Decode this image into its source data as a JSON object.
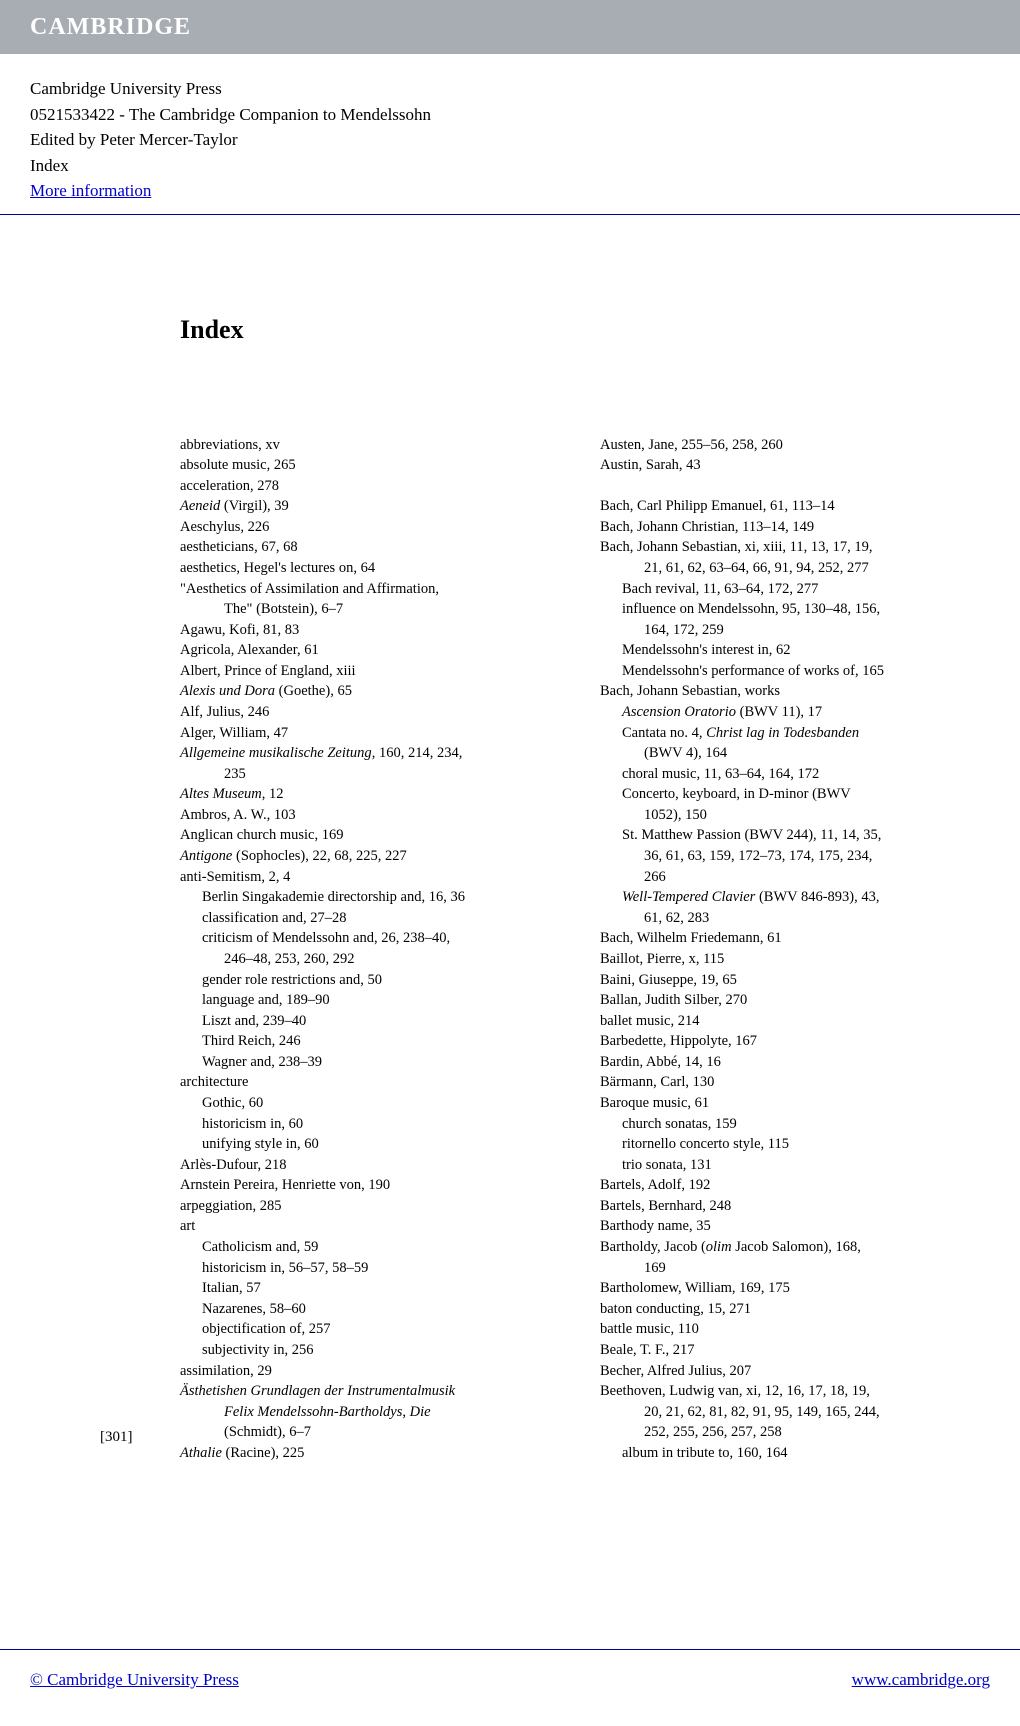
{
  "banner": {
    "logo": "CAMBRIDGE"
  },
  "header": {
    "publisher": "Cambridge University Press",
    "isbn_title": "0521533422 - The Cambridge Companion to Mendelssohn",
    "editor": "Edited by Peter Mercer-Taylor",
    "section": "Index",
    "more_info": "More information"
  },
  "title": "Index",
  "page_number": "[301]",
  "footer": {
    "left": "© Cambridge University Press",
    "right": "www.cambridge.org"
  },
  "col1": [
    {
      "t": "abbreviations, xv",
      "c": "entry"
    },
    {
      "t": "absolute music, 265",
      "c": "entry"
    },
    {
      "t": "acceleration, 278",
      "c": "entry"
    },
    {
      "html": "<span class='italic'>Aeneid</span> (Virgil), 39",
      "c": "entry"
    },
    {
      "t": "Aeschylus, 226",
      "c": "entry"
    },
    {
      "t": "aestheticians, 67, 68",
      "c": "entry"
    },
    {
      "t": "aesthetics, Hegel's lectures on, 64",
      "c": "entry"
    },
    {
      "t": "\"Aesthetics of Assimilation and Affirmation,",
      "c": "entry"
    },
    {
      "t": "The\" (Botstein), 6–7",
      "c": "sub2"
    },
    {
      "t": "Agawu, Kofi, 81, 83",
      "c": "entry"
    },
    {
      "t": "Agricola, Alexander, 61",
      "c": "entry"
    },
    {
      "t": "Albert, Prince of England, xiii",
      "c": "entry"
    },
    {
      "html": "<span class='italic'>Alexis und Dora</span> (Goethe), 65",
      "c": "entry"
    },
    {
      "t": "Alf, Julius, 246",
      "c": "entry"
    },
    {
      "t": "Alger, William, 47",
      "c": "entry"
    },
    {
      "html": "<span class='italic'>Allgemeine musikalische Zeitung</span>, 160, 214, 234,",
      "c": "entry"
    },
    {
      "t": "235",
      "c": "sub2"
    },
    {
      "html": "<span class='italic'>Altes Museum</span>, 12",
      "c": "entry"
    },
    {
      "t": "Ambros, A. W., 103",
      "c": "entry"
    },
    {
      "t": "Anglican church music, 169",
      "c": "entry"
    },
    {
      "html": "<span class='italic'>Antigone</span> (Sophocles), 22, 68, 225, 227",
      "c": "entry"
    },
    {
      "t": "anti-Semitism, 2, 4",
      "c": "entry"
    },
    {
      "t": "Berlin Singakademie directorship and, 16, 36",
      "c": "sub1"
    },
    {
      "t": "classification and, 27–28",
      "c": "sub1"
    },
    {
      "t": "criticism of Mendelssohn and, 26, 238–40,",
      "c": "sub1"
    },
    {
      "t": "246–48, 253, 260, 292",
      "c": "sub2"
    },
    {
      "t": "gender role restrictions and, 50",
      "c": "sub1"
    },
    {
      "t": "language and, 189–90",
      "c": "sub1"
    },
    {
      "t": "Liszt and, 239–40",
      "c": "sub1"
    },
    {
      "t": "Third Reich, 246",
      "c": "sub1"
    },
    {
      "t": "Wagner and, 238–39",
      "c": "sub1"
    },
    {
      "t": "architecture",
      "c": "entry"
    },
    {
      "t": "Gothic, 60",
      "c": "sub1"
    },
    {
      "t": "historicism in, 60",
      "c": "sub1"
    },
    {
      "t": "unifying style in, 60",
      "c": "sub1"
    },
    {
      "t": "Arlès-Dufour, 218",
      "c": "entry"
    },
    {
      "t": "Arnstein Pereira, Henriette von, 190",
      "c": "entry"
    },
    {
      "t": "arpeggiation, 285",
      "c": "entry"
    },
    {
      "t": "art",
      "c": "entry"
    },
    {
      "t": "Catholicism and, 59",
      "c": "sub1"
    },
    {
      "t": "historicism in, 56–57, 58–59",
      "c": "sub1"
    },
    {
      "t": "Italian, 57",
      "c": "sub1"
    },
    {
      "t": "Nazarenes, 58–60",
      "c": "sub1"
    },
    {
      "t": "objectification of, 257",
      "c": "sub1"
    },
    {
      "t": "subjectivity in, 256",
      "c": "sub1"
    },
    {
      "t": "assimilation, 29",
      "c": "entry"
    },
    {
      "html": "<span class='italic'>Ästhetishen Grundlagen der Instrumentalmusik</span>",
      "c": "entry"
    },
    {
      "html": "<span class='italic'>Felix Mendelssohn-Bartholdys</span>, <span class='italic'>Die</span>",
      "c": "sub2"
    },
    {
      "t": "(Schmidt), 6–7",
      "c": "sub2"
    },
    {
      "html": "<span class='italic'>Athalie</span> (Racine), 225",
      "c": "entry"
    }
  ],
  "col2": [
    {
      "t": "Austen, Jane, 255–56, 258, 260",
      "c": "entry"
    },
    {
      "t": "Austin, Sarah, 43",
      "c": "entry"
    },
    {
      "t": "",
      "c": "entry"
    },
    {
      "t": "Bach, Carl Philipp Emanuel, 61, 113–14",
      "c": "entry"
    },
    {
      "t": "Bach, Johann Christian, 113–14, 149",
      "c": "entry"
    },
    {
      "t": "Bach, Johann Sebastian, xi, xiii, 11, 13, 17, 19,",
      "c": "entry"
    },
    {
      "t": "21, 61, 62, 63–64, 66, 91, 94, 252, 277",
      "c": "sub2"
    },
    {
      "t": "Bach revival, 11, 63–64, 172, 277",
      "c": "sub1"
    },
    {
      "t": "influence on Mendelssohn, 95, 130–48, 156,",
      "c": "sub1"
    },
    {
      "t": "164, 172, 259",
      "c": "sub2"
    },
    {
      "t": "Mendelssohn's interest in, 62",
      "c": "sub1"
    },
    {
      "t": "Mendelssohn's performance of works of, 165",
      "c": "sub1"
    },
    {
      "t": "Bach, Johann Sebastian, works",
      "c": "entry"
    },
    {
      "html": "<span class='italic'>Ascension Oratorio</span> (BWV 11), 17",
      "c": "sub1"
    },
    {
      "html": "Cantata no. 4, <span class='italic'>Christ lag in Todesbanden</span>",
      "c": "sub1"
    },
    {
      "t": "(BWV 4), 164",
      "c": "sub2"
    },
    {
      "t": "choral music, 11, 63–64, 164, 172",
      "c": "sub1"
    },
    {
      "t": "Concerto, keyboard, in D-minor (BWV",
      "c": "sub1"
    },
    {
      "t": "1052), 150",
      "c": "sub2"
    },
    {
      "t": "St. Matthew Passion (BWV 244), 11, 14, 35,",
      "c": "sub1"
    },
    {
      "t": "36, 61, 63, 159, 172–73, 174, 175, 234,",
      "c": "sub2"
    },
    {
      "t": "266",
      "c": "sub2"
    },
    {
      "html": "<span class='italic'>Well-Tempered Clavier</span> (BWV 846-893), 43,",
      "c": "sub1"
    },
    {
      "t": "61, 62, 283",
      "c": "sub2"
    },
    {
      "t": "Bach, Wilhelm Friedemann, 61",
      "c": "entry"
    },
    {
      "t": "Baillot, Pierre, x, 115",
      "c": "entry"
    },
    {
      "t": "Baini, Giuseppe, 19, 65",
      "c": "entry"
    },
    {
      "t": "Ballan, Judith Silber, 270",
      "c": "entry"
    },
    {
      "t": "ballet music, 214",
      "c": "entry"
    },
    {
      "t": "Barbedette, Hippolyte, 167",
      "c": "entry"
    },
    {
      "t": "Bardin, Abbé, 14, 16",
      "c": "entry"
    },
    {
      "t": "Bärmann, Carl, 130",
      "c": "entry"
    },
    {
      "t": "Baroque music, 61",
      "c": "entry"
    },
    {
      "t": "church sonatas, 159",
      "c": "sub1"
    },
    {
      "t": "ritornello concerto style, 115",
      "c": "sub1"
    },
    {
      "t": "trio sonata, 131",
      "c": "sub1"
    },
    {
      "t": "Bartels, Adolf, 192",
      "c": "entry"
    },
    {
      "t": "Bartels, Bernhard, 248",
      "c": "entry"
    },
    {
      "t": "Barthody name, 35",
      "c": "entry"
    },
    {
      "html": "Bartholdy, Jacob (<span class='italic'>olim</span> Jacob Salomon), 168,",
      "c": "entry"
    },
    {
      "t": "169",
      "c": "sub2"
    },
    {
      "t": "Bartholomew, William, 169, 175",
      "c": "entry"
    },
    {
      "t": "baton conducting, 15, 271",
      "c": "entry"
    },
    {
      "t": "battle music, 110",
      "c": "entry"
    },
    {
      "t": "Beale, T. F., 217",
      "c": "entry"
    },
    {
      "t": "Becher, Alfred Julius, 207",
      "c": "entry"
    },
    {
      "t": "Beethoven, Ludwig van, xi, 12, 16, 17, 18, 19,",
      "c": "entry"
    },
    {
      "t": "20, 21, 62, 81, 82, 91, 95, 149, 165, 244,",
      "c": "sub2"
    },
    {
      "t": "252, 255, 256, 257, 258",
      "c": "sub2"
    },
    {
      "t": "album in tribute to, 160, 164",
      "c": "sub1"
    }
  ]
}
